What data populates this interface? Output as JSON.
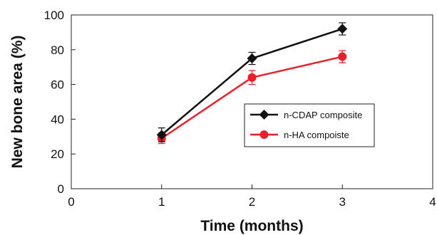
{
  "chart_data": {
    "type": "line",
    "xlabel": "Time (months)",
    "ylabel": "New bone area (%)",
    "xlim": [
      0,
      4
    ],
    "ylim": [
      0,
      100
    ],
    "xticks": [
      0,
      1,
      2,
      3,
      4
    ],
    "yticks": [
      0,
      20,
      40,
      60,
      80,
      100
    ],
    "grid": false,
    "legend_position": "center-right",
    "x": [
      1,
      2,
      3
    ],
    "series": [
      {
        "name": "n-CDAP composite",
        "values": [
          31,
          75,
          92
        ],
        "errors": [
          4,
          3.5,
          3.5
        ],
        "color": "#111111",
        "marker": "diamond"
      },
      {
        "name": "n-HA compoiste",
        "values": [
          29,
          64,
          76
        ],
        "errors": [
          3,
          4,
          3.5
        ],
        "color": "#e8202a",
        "marker": "circle"
      }
    ]
  }
}
